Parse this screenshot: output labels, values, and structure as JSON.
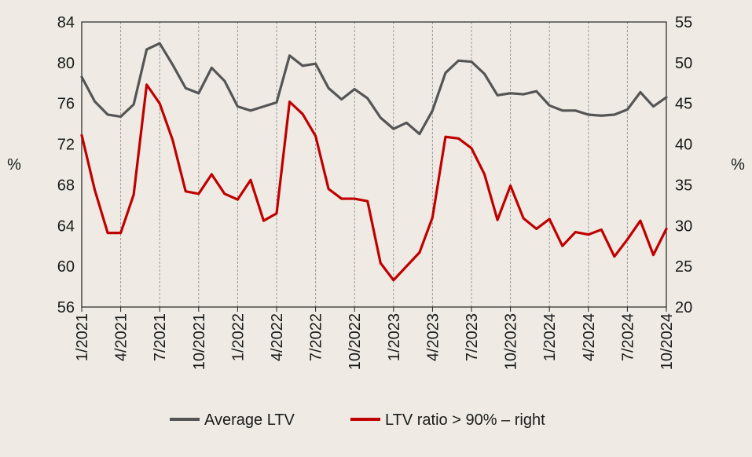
{
  "chart_data": {
    "type": "line",
    "title": "",
    "y_left": {
      "label": "%",
      "range": [
        56,
        84
      ],
      "ticks": [
        "56",
        "60",
        "64",
        "68",
        "72",
        "76",
        "80",
        "84"
      ]
    },
    "y_right": {
      "label": "%",
      "range": [
        20,
        55
      ],
      "ticks": [
        "20",
        "25",
        "30",
        "35",
        "40",
        "45",
        "50",
        "55"
      ]
    },
    "x_ticks": [
      "1/2021",
      "4/2021",
      "7/2021",
      "10/2021",
      "1/2022",
      "4/2022",
      "7/2022",
      "10/2022",
      "1/2023",
      "4/2023",
      "7/2023",
      "10/2023",
      "1/2024",
      "4/2024",
      "7/2024",
      "10/2024"
    ],
    "x_range": [
      "1/2021",
      "10/2024"
    ],
    "grid": "vertical",
    "legend_position": "bottom",
    "series": [
      {
        "name": "Average LTV",
        "axis": "left",
        "color": "#555555",
        "values": [
          78.6,
          76.2,
          74.9,
          74.7,
          75.9,
          81.3,
          81.9,
          79.8,
          77.5,
          77.0,
          79.5,
          78.2,
          75.7,
          75.3,
          75.7,
          76.1,
          80.7,
          79.7,
          79.9,
          77.5,
          76.4,
          77.4,
          76.5,
          74.6,
          73.5,
          74.1,
          73.0,
          75.3,
          79.0,
          80.2,
          80.1,
          78.9,
          76.8,
          77.0,
          76.9,
          77.2,
          75.8,
          75.3,
          75.3,
          74.9,
          74.8,
          74.9,
          75.4,
          77.1,
          75.7,
          76.6
        ]
      },
      {
        "name": "LTV ratio > 90% – right",
        "axis": "right",
        "color": "#c00000",
        "values": [
          41.1,
          34.4,
          29.1,
          29.1,
          33.8,
          47.3,
          45.0,
          40.5,
          34.2,
          33.9,
          36.3,
          33.9,
          33.2,
          35.6,
          30.6,
          31.5,
          45.2,
          43.7,
          41.0,
          34.5,
          33.3,
          33.3,
          33.0,
          25.4,
          23.3,
          25.0,
          26.7,
          31.0,
          40.9,
          40.7,
          39.5,
          36.3,
          30.7,
          34.9,
          30.9,
          29.6,
          30.8,
          27.5,
          29.2,
          28.9,
          29.5,
          26.2,
          28.3,
          30.6,
          26.4,
          29.6
        ]
      }
    ]
  },
  "legend": {
    "items": [
      {
        "label": "Average LTV",
        "color": "#555555"
      },
      {
        "label": "LTV ratio > 90% – right",
        "color": "#c00000"
      }
    ]
  }
}
